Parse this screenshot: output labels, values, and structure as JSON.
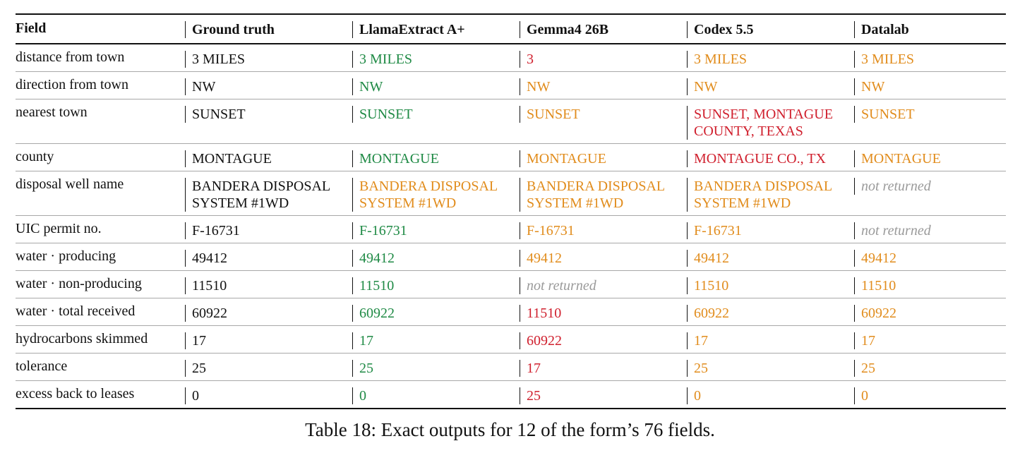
{
  "table": {
    "headers": [
      "Field",
      "Ground truth",
      "LlamaExtract A+",
      "Gemma4 26B",
      "Codex 5.5",
      "Datalab"
    ],
    "rows": [
      {
        "field": "distance from town",
        "cells": [
          {
            "text": "3 MILES",
            "status": "gt"
          },
          {
            "text": "3 MILES",
            "status": "ok"
          },
          {
            "text": "3",
            "status": "wrong"
          },
          {
            "text": "3 MILES",
            "status": "partial"
          },
          {
            "text": "3 MILES",
            "status": "partial"
          }
        ]
      },
      {
        "field": "direction from town",
        "cells": [
          {
            "text": "NW",
            "status": "gt"
          },
          {
            "text": "NW",
            "status": "ok"
          },
          {
            "text": "NW",
            "status": "partial"
          },
          {
            "text": "NW",
            "status": "partial"
          },
          {
            "text": "NW",
            "status": "partial"
          }
        ]
      },
      {
        "field": "nearest town",
        "two_line": true,
        "cells": [
          {
            "text": "SUNSET",
            "status": "gt"
          },
          {
            "text": "SUNSET",
            "status": "ok"
          },
          {
            "text": "SUNSET",
            "status": "partial"
          },
          {
            "text": "SUNSET, MONTAGUE COUNTY, TEXAS",
            "status": "wrong"
          },
          {
            "text": "SUNSET",
            "status": "partial"
          }
        ]
      },
      {
        "field": "county",
        "cells": [
          {
            "text": "MONTAGUE",
            "status": "gt"
          },
          {
            "text": "MONTAGUE",
            "status": "ok"
          },
          {
            "text": "MONTAGUE",
            "status": "partial"
          },
          {
            "text": "MONTAGUE CO., TX",
            "status": "wrong"
          },
          {
            "text": "MONTAGUE",
            "status": "partial"
          }
        ]
      },
      {
        "field": "disposal well name",
        "two_line": true,
        "cells": [
          {
            "text": "BANDERA DISPOSAL SYSTEM #1WD",
            "status": "gt"
          },
          {
            "text": "BANDERA DISPOSAL SYSTEM #1WD",
            "status": "partial"
          },
          {
            "text": "BANDERA DISPOSAL SYSTEM #1WD",
            "status": "partial"
          },
          {
            "text": "BANDERA DISPOSAL SYSTEM #1WD",
            "status": "partial"
          },
          {
            "text": "not returned",
            "status": "missing"
          }
        ]
      },
      {
        "field": "UIC permit no.",
        "cells": [
          {
            "text": "F-16731",
            "status": "gt"
          },
          {
            "text": "F-16731",
            "status": "ok"
          },
          {
            "text": "F-16731",
            "status": "partial"
          },
          {
            "text": "F-16731",
            "status": "partial"
          },
          {
            "text": "not returned",
            "status": "missing"
          }
        ]
      },
      {
        "field": "water · producing",
        "cells": [
          {
            "text": "49412",
            "status": "gt"
          },
          {
            "text": "49412",
            "status": "ok"
          },
          {
            "text": "49412",
            "status": "partial"
          },
          {
            "text": "49412",
            "status": "partial"
          },
          {
            "text": "49412",
            "status": "partial"
          }
        ]
      },
      {
        "field": "water · non-producing",
        "cells": [
          {
            "text": "11510",
            "status": "gt"
          },
          {
            "text": "11510",
            "status": "ok"
          },
          {
            "text": "not returned",
            "status": "missing"
          },
          {
            "text": "11510",
            "status": "partial"
          },
          {
            "text": "11510",
            "status": "partial"
          }
        ]
      },
      {
        "field": "water · total received",
        "cells": [
          {
            "text": "60922",
            "status": "gt"
          },
          {
            "text": "60922",
            "status": "ok"
          },
          {
            "text": "11510",
            "status": "wrong"
          },
          {
            "text": "60922",
            "status": "partial"
          },
          {
            "text": "60922",
            "status": "partial"
          }
        ]
      },
      {
        "field": "hydrocarbons skimmed",
        "cells": [
          {
            "text": "17",
            "status": "gt"
          },
          {
            "text": "17",
            "status": "ok"
          },
          {
            "text": "60922",
            "status": "wrong"
          },
          {
            "text": "17",
            "status": "partial"
          },
          {
            "text": "17",
            "status": "partial"
          }
        ]
      },
      {
        "field": "tolerance",
        "cells": [
          {
            "text": "25",
            "status": "gt"
          },
          {
            "text": "25",
            "status": "ok"
          },
          {
            "text": "17",
            "status": "wrong"
          },
          {
            "text": "25",
            "status": "partial"
          },
          {
            "text": "25",
            "status": "partial"
          }
        ]
      },
      {
        "field": "excess back to leases",
        "cells": [
          {
            "text": "0",
            "status": "gt"
          },
          {
            "text": "0",
            "status": "ok"
          },
          {
            "text": "25",
            "status": "wrong"
          },
          {
            "text": "0",
            "status": "partial"
          },
          {
            "text": "0",
            "status": "partial"
          }
        ]
      }
    ]
  },
  "caption": "Table 18: Exact outputs for 12 of the form’s 76 fields.",
  "colors": {
    "ok": "#1f8a45",
    "partial": "#e18c1c",
    "wrong": "#d0202e",
    "missing": "#9a9a9a",
    "gt": "#111111"
  }
}
